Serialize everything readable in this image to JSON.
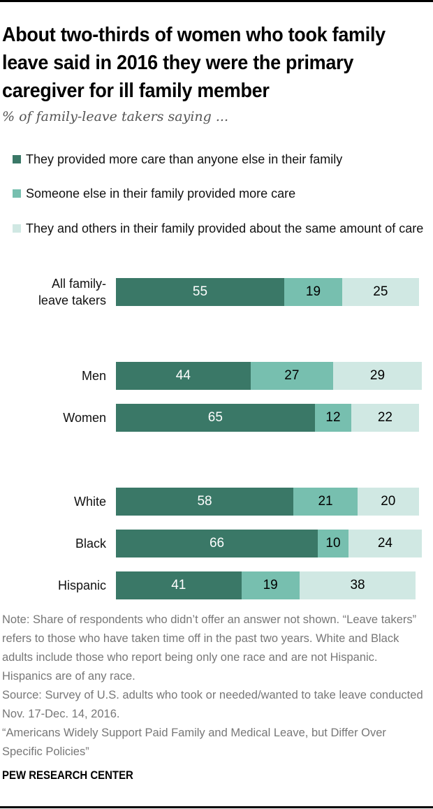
{
  "title": "About two-thirds of women who took family leave said in 2016 they were the primary caregiver for ill family member",
  "subtitle": "% of family-leave takers saying ...",
  "colors": {
    "series1": "#3a7867",
    "series2": "#77bfaf",
    "series3": "#d0e8e3",
    "label_dark": "#ffffff",
    "label_light": "#000000"
  },
  "legend": [
    {
      "label": "They provided more care than anyone else in their family",
      "color": "#3a7867"
    },
    {
      "label": "Someone else in their family provided more care",
      "color": "#77bfaf"
    },
    {
      "label": "They and others in their family provided about the same amount of care",
      "color": "#d0e8e3"
    }
  ],
  "chart_data": {
    "type": "bar",
    "orientation": "horizontal",
    "stacked": true,
    "title": "About two-thirds of women who took family leave said in 2016 they were the primary caregiver for ill family member",
    "subtitle": "% of family-leave takers saying ...",
    "xlabel": "",
    "ylabel": "",
    "xlim": [
      0,
      100
    ],
    "grid": false,
    "legend_position": "top",
    "categories": [
      "All family-leave takers",
      "Men",
      "Women",
      "White",
      "Black",
      "Hispanic"
    ],
    "category_groups": [
      [
        "All family-leave takers"
      ],
      [
        "Men",
        "Women"
      ],
      [
        "White",
        "Black",
        "Hispanic"
      ]
    ],
    "series": [
      {
        "name": "They provided more care than anyone else in their family",
        "values": [
          55,
          44,
          65,
          58,
          66,
          41
        ]
      },
      {
        "name": "Someone else in their family provided more care",
        "values": [
          19,
          27,
          12,
          21,
          10,
          19
        ]
      },
      {
        "name": "They and others in their family provided about the same amount of care",
        "values": [
          25,
          29,
          22,
          20,
          24,
          38
        ]
      }
    ]
  },
  "category_labels": [
    [
      "All family-",
      "leave takers"
    ],
    [
      "Men"
    ],
    [
      "Women"
    ],
    [
      "White"
    ],
    [
      "Black"
    ],
    [
      "Hispanic"
    ]
  ],
  "note": "Note: Share of respondents who didn’t offer an answer not shown. “Leave takers” refers to those who have taken time off in the past two years. White and Black adults include those who report being only one race and are not Hispanic. Hispanics are of any race.",
  "source": "Source: Survey of U.S. adults who took or needed/wanted to take leave conducted Nov. 17-Dec. 14, 2016.",
  "report_title": "“Americans Widely Support Paid Family and Medical Leave, but Differ Over Specific Policies”",
  "brand": "PEW RESEARCH CENTER"
}
